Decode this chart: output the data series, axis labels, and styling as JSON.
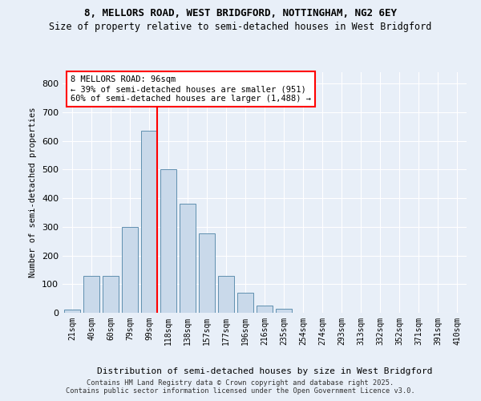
{
  "title1": "8, MELLORS ROAD, WEST BRIDGFORD, NOTTINGHAM, NG2 6EY",
  "title2": "Size of property relative to semi-detached houses in West Bridgford",
  "xlabel": "Distribution of semi-detached houses by size in West Bridgford",
  "ylabel": "Number of semi-detached properties",
  "bar_labels": [
    "21sqm",
    "40sqm",
    "60sqm",
    "79sqm",
    "99sqm",
    "118sqm",
    "138sqm",
    "157sqm",
    "177sqm",
    "196sqm",
    "216sqm",
    "235sqm",
    "254sqm",
    "274sqm",
    "293sqm",
    "313sqm",
    "332sqm",
    "352sqm",
    "371sqm",
    "391sqm",
    "410sqm"
  ],
  "bar_values": [
    10,
    128,
    128,
    300,
    635,
    500,
    380,
    278,
    130,
    70,
    25,
    13,
    0,
    0,
    0,
    0,
    0,
    0,
    0,
    0,
    0
  ],
  "bar_color": "#c9d9ea",
  "bar_edge_color": "#6090b0",
  "vline_color": "red",
  "vline_pos": 4.42,
  "ylim": [
    0,
    840
  ],
  "yticks": [
    0,
    100,
    200,
    300,
    400,
    500,
    600,
    700,
    800
  ],
  "annotation_text": "8 MELLORS ROAD: 96sqm\n← 39% of semi-detached houses are smaller (951)\n60% of semi-detached houses are larger (1,488) →",
  "annotation_box_color": "white",
  "annotation_box_edge": "red",
  "footer": "Contains HM Land Registry data © Crown copyright and database right 2025.\nContains public sector information licensed under the Open Government Licence v3.0.",
  "background_color": "#e8eff8",
  "plot_bg_color": "#e8eff8",
  "title1_fontsize": 9,
  "title2_fontsize": 8.5
}
